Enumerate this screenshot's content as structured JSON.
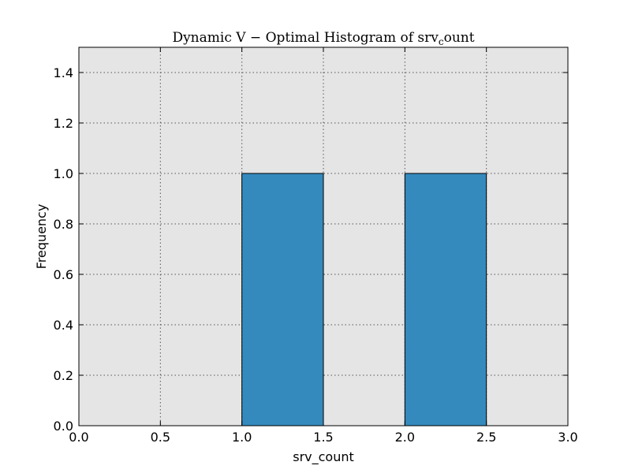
{
  "chart_data": {
    "type": "bar",
    "title": "Dynamic V − Optimal Histogram of srv",
    "title_subscript": "c",
    "title_suffix": "ount",
    "xlabel": "srv_count",
    "ylabel": "Frequency",
    "xlim": [
      0.0,
      3.0
    ],
    "ylim": [
      0.0,
      1.5
    ],
    "xticks": [
      "0.0",
      "0.5",
      "1.0",
      "1.5",
      "2.0",
      "2.5",
      "3.0"
    ],
    "yticks": [
      "0.0",
      "0.2",
      "0.4",
      "0.6",
      "0.8",
      "1.0",
      "1.2",
      "1.4"
    ],
    "bins": [
      {
        "x0": 1.0,
        "x1": 1.5,
        "value": 1.0
      },
      {
        "x0": 2.0,
        "x1": 2.5,
        "value": 1.0
      }
    ],
    "grid": true,
    "bar_color": "#348ABD",
    "plot_background": "#E5E5E5"
  }
}
